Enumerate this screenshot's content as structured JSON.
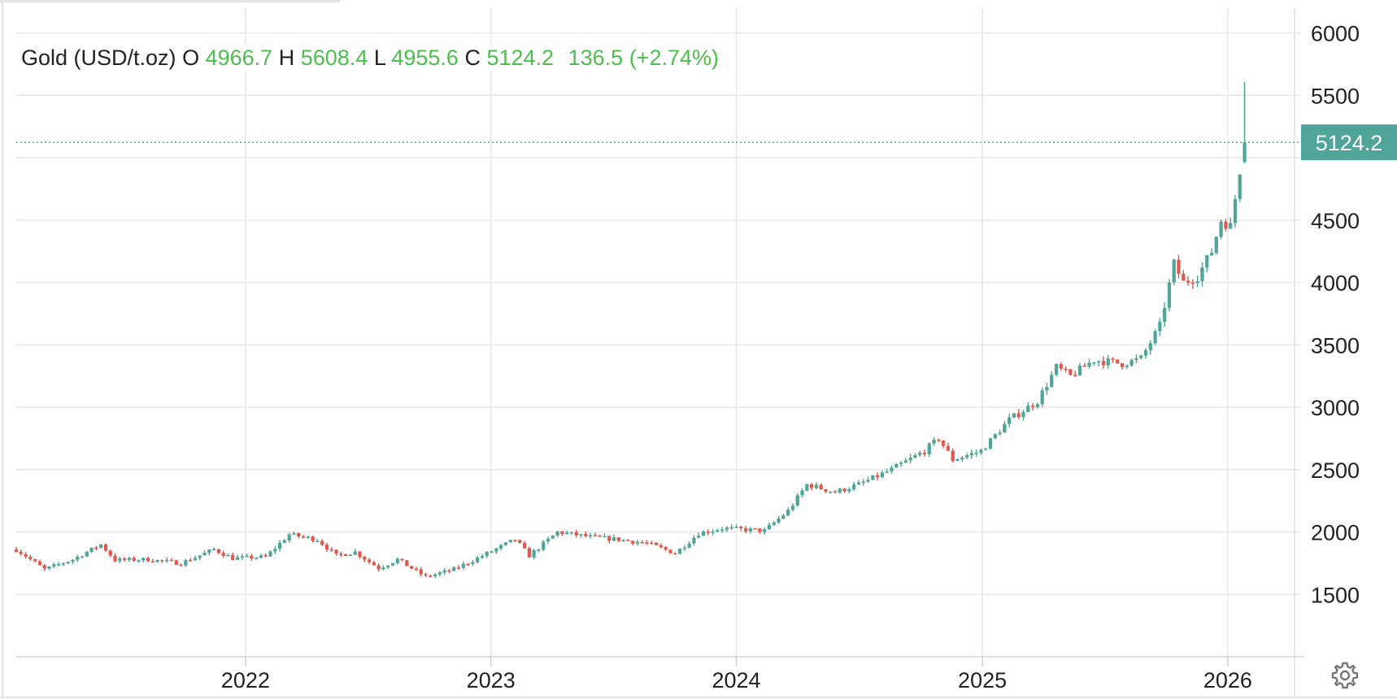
{
  "legend": {
    "instrument": "Gold (USD/t.oz)",
    "open_label": "O",
    "open": "4966.7",
    "high_label": "H",
    "high": "5608.4",
    "low_label": "L",
    "low": "4955.6",
    "close_label": "C",
    "close": "5124.2",
    "change": "136.5",
    "change_pct": "(+2.74%)"
  },
  "colors": {
    "up": "#4fa597",
    "down": "#e2574c",
    "legend_value": "#4cc04c",
    "grid": "#e6e6e6",
    "price_tag": "#4fa597"
  },
  "icons": {
    "settings": "gear-icon"
  },
  "chart_data": {
    "type": "candlestick",
    "interval": "weekly",
    "x_ticks": [
      "2022",
      "2023",
      "2024",
      "2025",
      "2026"
    ],
    "y_ticks": [
      1500,
      2000,
      2500,
      3000,
      3500,
      4000,
      4500,
      5000,
      5500,
      6000
    ],
    "y_tick_labels_shown": [
      "1500",
      "2000",
      "2500",
      "3000",
      "3500",
      "4000",
      "4500",
      "5500",
      "6000"
    ],
    "ylim": [
      1000,
      6200
    ],
    "xlim": [
      "2021-01-25",
      "2026-04-20"
    ],
    "current_price": 5124.2,
    "current_price_label": "5124.2",
    "grid": true,
    "close_anchors": [
      [
        "2021-01-25",
        1860
      ],
      [
        "2021-03-08",
        1700
      ],
      [
        "2021-04-19",
        1780
      ],
      [
        "2021-05-31",
        1900
      ],
      [
        "2021-06-21",
        1775
      ],
      [
        "2021-08-09",
        1780
      ],
      [
        "2021-09-27",
        1750
      ],
      [
        "2021-11-15",
        1860
      ],
      [
        "2021-12-13",
        1790
      ],
      [
        "2022-01-31",
        1800
      ],
      [
        "2022-03-07",
        1980
      ],
      [
        "2022-04-18",
        1940
      ],
      [
        "2022-05-16",
        1810
      ],
      [
        "2022-06-13",
        1840
      ],
      [
        "2022-07-18",
        1710
      ],
      [
        "2022-08-15",
        1780
      ],
      [
        "2022-09-26",
        1640
      ],
      [
        "2022-11-07",
        1700
      ],
      [
        "2022-12-12",
        1790
      ],
      [
        "2023-02-06",
        1940
      ],
      [
        "2023-02-27",
        1810
      ],
      [
        "2023-04-10",
        2000
      ],
      [
        "2023-05-29",
        1960
      ],
      [
        "2023-07-10",
        1940
      ],
      [
        "2023-08-21",
        1910
      ],
      [
        "2023-10-02",
        1830
      ],
      [
        "2023-11-06",
        1990
      ],
      [
        "2023-12-11",
        2030
      ],
      [
        "2024-02-12",
        2010
      ],
      [
        "2024-03-18",
        2170
      ],
      [
        "2024-04-15",
        2380
      ],
      [
        "2024-05-27",
        2320
      ],
      [
        "2024-07-01",
        2380
      ],
      [
        "2024-08-19",
        2500
      ],
      [
        "2024-10-07",
        2650
      ],
      [
        "2024-10-28",
        2750
      ],
      [
        "2024-11-18",
        2580
      ],
      [
        "2024-12-30",
        2650
      ],
      [
        "2025-02-10",
        2900
      ],
      [
        "2025-03-24",
        3050
      ],
      [
        "2025-04-21",
        3320
      ],
      [
        "2025-05-12",
        3250
      ],
      [
        "2025-06-16",
        3380
      ],
      [
        "2025-07-28",
        3350
      ],
      [
        "2025-08-25",
        3390
      ],
      [
        "2025-09-22",
        3650
      ],
      [
        "2025-10-13",
        4150
      ],
      [
        "2025-10-27",
        4000
      ],
      [
        "2025-11-17",
        4050
      ],
      [
        "2025-12-08",
        4250
      ],
      [
        "2025-12-22",
        4500
      ],
      [
        "2026-01-05",
        4450
      ],
      [
        "2026-01-19",
        4900
      ]
    ],
    "last_candle": {
      "date": "2026-01-26",
      "open": 4966.7,
      "high": 5608.4,
      "low": 4955.6,
      "close": 5124.2
    }
  }
}
